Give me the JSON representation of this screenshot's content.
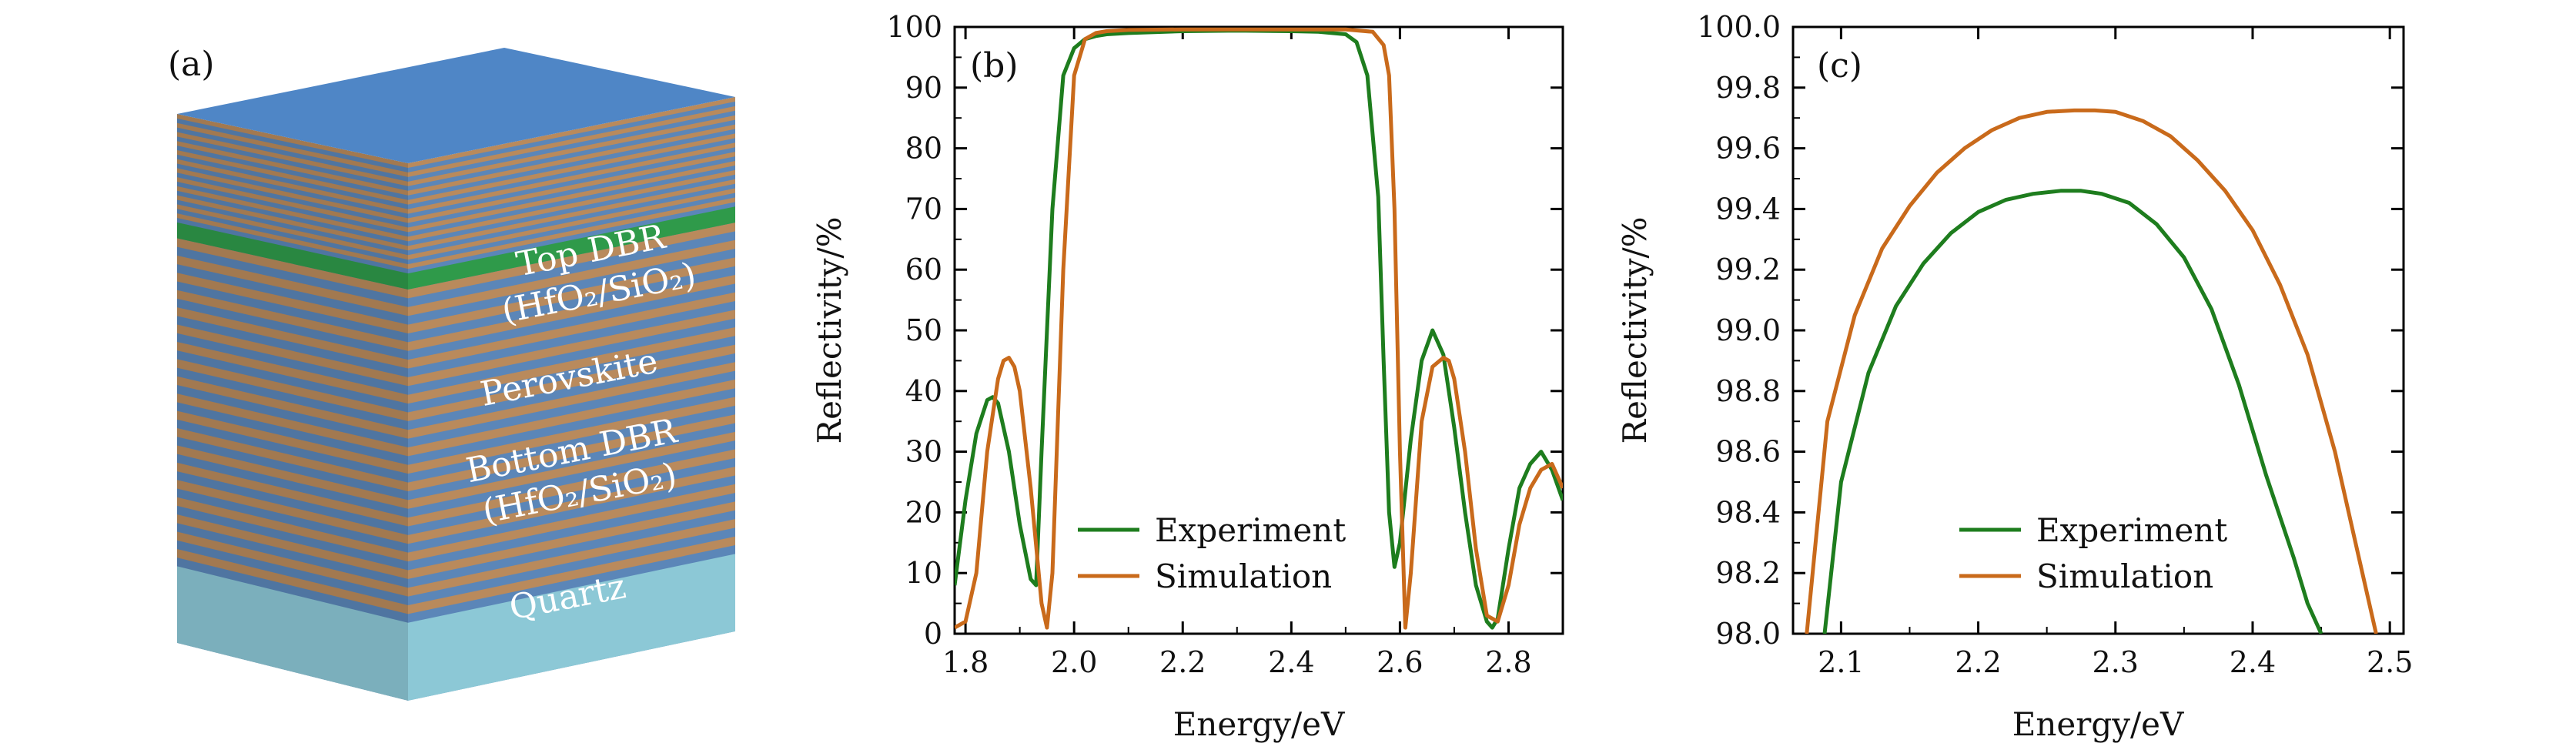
{
  "panel_a": {
    "label": "(a)",
    "layers": [
      {
        "name": "top-dbr",
        "lines": [
          "Top DBR",
          "(HfO₂/SiO₂)"
        ]
      },
      {
        "name": "perovskite",
        "lines": [
          "Perovskite"
        ]
      },
      {
        "name": "bottom-dbr",
        "lines": [
          "Bottom DBR",
          "(HfO₂/SiO₂)"
        ]
      },
      {
        "name": "quartz",
        "lines": [
          "Quartz"
        ]
      }
    ],
    "colors": {
      "top": "#4f86c6",
      "stripe_blue": "#5b86b8",
      "stripe_orange": "#b98a5c",
      "perovskite": "#2f9a4a",
      "quartz": "#8cc8d6"
    }
  },
  "chart_data": [
    {
      "type": "line",
      "panel": "(b)",
      "xlabel": "Energy/eV",
      "ylabel": "Reflectivity/%",
      "xlim": [
        1.78,
        2.9
      ],
      "ylim": [
        0,
        100
      ],
      "xticks": [
        1.8,
        2.0,
        2.2,
        2.4,
        2.6,
        2.8
      ],
      "xtick_labels": [
        "1.8",
        "2.0",
        "2.2",
        "2.4",
        "2.6",
        "2.8"
      ],
      "yticks": [
        0,
        10,
        20,
        30,
        40,
        50,
        60,
        70,
        80,
        90,
        100
      ],
      "ytick_labels": [
        "0",
        "10",
        "20",
        "30",
        "40",
        "50",
        "60",
        "70",
        "80",
        "90",
        "100"
      ],
      "legend": "bottom-center",
      "series": [
        {
          "name": "Experiment",
          "color": "#1e7d1e",
          "x": [
            1.78,
            1.8,
            1.82,
            1.84,
            1.85,
            1.86,
            1.88,
            1.9,
            1.92,
            1.93,
            1.94,
            1.96,
            1.98,
            2.0,
            2.02,
            2.04,
            2.06,
            2.1,
            2.2,
            2.3,
            2.4,
            2.45,
            2.5,
            2.52,
            2.54,
            2.56,
            2.57,
            2.58,
            2.59,
            2.6,
            2.62,
            2.64,
            2.66,
            2.68,
            2.7,
            2.72,
            2.74,
            2.76,
            2.77,
            2.78,
            2.8,
            2.82,
            2.84,
            2.86,
            2.88,
            2.9
          ],
          "y": [
            8,
            22,
            33,
            38.5,
            39,
            38,
            30,
            18,
            9,
            8,
            30,
            70,
            92,
            96.5,
            98,
            98.5,
            98.8,
            99,
            99.3,
            99.4,
            99.3,
            99.2,
            98.8,
            97.5,
            92,
            72,
            45,
            20,
            11,
            15,
            32,
            45,
            50,
            46,
            34,
            20,
            8,
            2,
            1,
            2.5,
            14,
            24,
            28,
            30,
            27,
            22
          ]
        },
        {
          "name": "Simulation",
          "color": "#c96a1b",
          "x": [
            1.78,
            1.8,
            1.82,
            1.84,
            1.86,
            1.87,
            1.88,
            1.89,
            1.9,
            1.92,
            1.94,
            1.95,
            1.96,
            1.98,
            2.0,
            2.02,
            2.04,
            2.06,
            2.1,
            2.2,
            2.3,
            2.4,
            2.5,
            2.55,
            2.57,
            2.58,
            2.59,
            2.6,
            2.61,
            2.62,
            2.64,
            2.66,
            2.68,
            2.69,
            2.7,
            2.72,
            2.74,
            2.76,
            2.78,
            2.8,
            2.82,
            2.84,
            2.86,
            2.88,
            2.9
          ],
          "y": [
            1,
            2,
            10,
            30,
            42,
            45,
            45.5,
            44,
            40,
            24,
            5,
            1,
            10,
            60,
            92,
            98,
            99,
            99.3,
            99.5,
            99.6,
            99.6,
            99.6,
            99.6,
            99.2,
            97,
            92,
            70,
            30,
            1,
            10,
            35,
            44,
            45.5,
            45,
            42,
            30,
            14,
            3,
            2,
            8,
            18,
            24,
            27,
            28,
            24
          ]
        }
      ]
    },
    {
      "type": "line",
      "panel": "(c)",
      "xlabel": "Energy/eV",
      "ylabel": "Reflectivity/%",
      "xlim": [
        2.065,
        2.51
      ],
      "ylim": [
        98.0,
        100.0
      ],
      "xticks": [
        2.1,
        2.2,
        2.3,
        2.4,
        2.5
      ],
      "xtick_labels": [
        "2.1",
        "2.2",
        "2.3",
        "2.4",
        "2.5"
      ],
      "yticks": [
        98.0,
        98.2,
        98.4,
        98.6,
        98.8,
        99.0,
        99.2,
        99.4,
        99.6,
        99.8,
        100.0
      ],
      "ytick_labels": [
        "98.0",
        "98.2",
        "98.4",
        "98.6",
        "98.8",
        "99.0",
        "99.2",
        "99.4",
        "99.6",
        "99.8",
        "100.0"
      ],
      "legend": "bottom-center",
      "series": [
        {
          "name": "Experiment",
          "color": "#1e7d1e",
          "x": [
            2.088,
            2.1,
            2.12,
            2.14,
            2.16,
            2.18,
            2.2,
            2.22,
            2.24,
            2.26,
            2.275,
            2.29,
            2.31,
            2.33,
            2.35,
            2.37,
            2.39,
            2.41,
            2.43,
            2.44,
            2.45
          ],
          "y": [
            98.0,
            98.5,
            98.86,
            99.08,
            99.22,
            99.32,
            99.39,
            99.43,
            99.45,
            99.46,
            99.46,
            99.45,
            99.42,
            99.35,
            99.24,
            99.07,
            98.82,
            98.52,
            98.25,
            98.1,
            98.0
          ]
        },
        {
          "name": "Simulation",
          "color": "#c96a1b",
          "x": [
            2.075,
            2.09,
            2.11,
            2.13,
            2.15,
            2.17,
            2.19,
            2.21,
            2.23,
            2.25,
            2.27,
            2.285,
            2.3,
            2.32,
            2.34,
            2.36,
            2.38,
            2.4,
            2.42,
            2.44,
            2.46,
            2.475,
            2.49
          ],
          "y": [
            98.0,
            98.7,
            99.05,
            99.27,
            99.41,
            99.52,
            99.6,
            99.66,
            99.7,
            99.72,
            99.725,
            99.725,
            99.72,
            99.69,
            99.64,
            99.56,
            99.46,
            99.33,
            99.15,
            98.92,
            98.6,
            98.3,
            98.0
          ]
        }
      ]
    }
  ]
}
